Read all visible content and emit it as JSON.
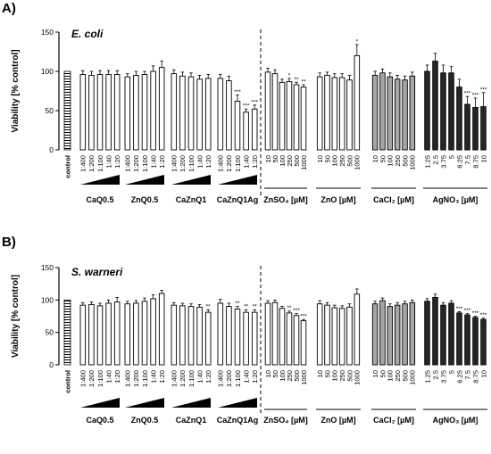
{
  "chart_data": [
    {
      "type": "bar",
      "panel": "A)",
      "organism": "E. coli",
      "ylabel": "Viability [% control]",
      "ylim": [
        0,
        150
      ],
      "yticks": [
        0,
        50,
        100,
        150
      ],
      "grid": false,
      "groups": [
        {
          "label": "CaQ0.5",
          "fill": "#ffffff",
          "ramp": true,
          "categories": [
            "1:400",
            "1:200",
            "1:100",
            "1:40",
            "1:20"
          ],
          "values": [
            96,
            95,
            96,
            96,
            96
          ],
          "errors": [
            5,
            5,
            5,
            5,
            5
          ],
          "sig": [
            "",
            "",
            "",
            "",
            ""
          ]
        },
        {
          "label": "ZnQ0.5",
          "fill": "#ffffff",
          "ramp": true,
          "categories": [
            "1:400",
            "1:200",
            "1:100",
            "1:40",
            "1:20"
          ],
          "values": [
            93,
            95,
            96,
            100,
            105
          ],
          "errors": [
            4,
            5,
            4,
            7,
            8
          ],
          "sig": [
            "",
            "",
            "",
            "",
            ""
          ]
        },
        {
          "label": "CaZnQ1",
          "fill": "#ffffff",
          "ramp": true,
          "categories": [
            "1:400",
            "1:200",
            "1:100",
            "1:40",
            "1:20"
          ],
          "values": [
            97,
            94,
            93,
            90,
            91
          ],
          "errors": [
            5,
            5,
            5,
            5,
            5
          ],
          "sig": [
            "",
            "",
            "",
            "",
            ""
          ]
        },
        {
          "label": "CaZnQ1Ag",
          "fill": "#ffffff",
          "ramp": true,
          "categories": [
            "1:400",
            "1:200",
            "1:100",
            "1:40",
            "1:20"
          ],
          "values": [
            91,
            88,
            62,
            48,
            52
          ],
          "errors": [
            5,
            6,
            8,
            4,
            5
          ],
          "sig": [
            "",
            "",
            "***",
            "***",
            "***"
          ]
        },
        {
          "label": "ZnSO₄ [µM]",
          "fill": "#ffffff",
          "ramp": false,
          "categories": [
            "10",
            "50",
            "100",
            "250",
            "500",
            "1000"
          ],
          "values": [
            99,
            97,
            86,
            87,
            83,
            80
          ],
          "errors": [
            5,
            5,
            4,
            4,
            3,
            3
          ],
          "sig": [
            "",
            "",
            "",
            "*",
            "**",
            "**"
          ]
        },
        {
          "label": "ZnO [µM]",
          "fill": "#ffffff",
          "ramp": false,
          "categories": [
            "10",
            "50",
            "100",
            "250",
            "500",
            "1000"
          ],
          "values": [
            93,
            95,
            92,
            92,
            89,
            120
          ],
          "errors": [
            5,
            4,
            5,
            5,
            6,
            14
          ],
          "sig": [
            "",
            "",
            "",
            "",
            "",
            "*"
          ]
        },
        {
          "label": "CaCl₂ [µM]",
          "fill": "#a6a6a6",
          "ramp": false,
          "categories": [
            "10",
            "50",
            "100",
            "250",
            "500",
            "1000"
          ],
          "values": [
            95,
            98,
            93,
            90,
            89,
            94
          ],
          "errors": [
            5,
            5,
            5,
            5,
            5,
            5
          ],
          "sig": [
            "",
            "",
            "",
            "",
            "",
            ""
          ]
        },
        {
          "label": "AgNO₃ [µM]",
          "fill": "#262626",
          "ramp": false,
          "categories": [
            "1.25",
            "2.5",
            "3.75",
            "5",
            "6.25",
            "7.5",
            "8.75",
            "10"
          ],
          "values": [
            100,
            113,
            98,
            98,
            80,
            58,
            54,
            55
          ],
          "errors": [
            8,
            10,
            10,
            8,
            10,
            10,
            12,
            18
          ],
          "sig": [
            "",
            "",
            "",
            "",
            "",
            "***",
            "***",
            "***"
          ]
        }
      ],
      "control": {
        "label": "control",
        "value": 100
      }
    },
    {
      "type": "bar",
      "panel": "B)",
      "organism": "S. warneri",
      "ylabel": "Viability [% control]",
      "ylim": [
        0,
        150
      ],
      "yticks": [
        0,
        50,
        100,
        150
      ],
      "grid": false,
      "groups": [
        {
          "label": "CaQ0.5",
          "fill": "#ffffff",
          "ramp": true,
          "categories": [
            "1:400",
            "1:200",
            "1:100",
            "1:40",
            "1:20"
          ],
          "values": [
            92,
            93,
            91,
            95,
            97
          ],
          "errors": [
            4,
            4,
            4,
            5,
            7
          ],
          "sig": [
            "",
            "",
            "",
            "",
            ""
          ]
        },
        {
          "label": "ZnQ0.5",
          "fill": "#ffffff",
          "ramp": true,
          "categories": [
            "1:400",
            "1:200",
            "1:100",
            "1:40",
            "1:20"
          ],
          "values": [
            94,
            95,
            98,
            102,
            110
          ],
          "errors": [
            4,
            4,
            5,
            6,
            5
          ],
          "sig": [
            "",
            "",
            "",
            "",
            ""
          ]
        },
        {
          "label": "CaZnQ1",
          "fill": "#ffffff",
          "ramp": true,
          "categories": [
            "1:400",
            "1:200",
            "1:100",
            "1:40",
            "1:20"
          ],
          "values": [
            92,
            91,
            90,
            89,
            81
          ],
          "errors": [
            4,
            4,
            4,
            4,
            4
          ],
          "sig": [
            "",
            "",
            "",
            "",
            "**"
          ]
        },
        {
          "label": "CaZnQ1Ag",
          "fill": "#ffffff",
          "ramp": true,
          "categories": [
            "1:400",
            "1:200",
            "1:100",
            "1:40",
            "1:20"
          ],
          "values": [
            95,
            90,
            86,
            81,
            81
          ],
          "errors": [
            6,
            5,
            4,
            4,
            4
          ],
          "sig": [
            "",
            "",
            "**",
            "**",
            "**"
          ]
        },
        {
          "label": "ZnSO₄ [µM]",
          "fill": "#ffffff",
          "ramp": false,
          "categories": [
            "10",
            "50",
            "100",
            "250",
            "500",
            "1000"
          ],
          "values": [
            95,
            96,
            87,
            80,
            76,
            68
          ],
          "errors": [
            4,
            4,
            3,
            3,
            3,
            2
          ],
          "sig": [
            "",
            "",
            "",
            "**",
            "***",
            "***"
          ]
        },
        {
          "label": "ZnO [µM]",
          "fill": "#ffffff",
          "ramp": false,
          "categories": [
            "10",
            "50",
            "100",
            "250",
            "500",
            "1000"
          ],
          "values": [
            94,
            92,
            88,
            87,
            89,
            109
          ],
          "errors": [
            5,
            4,
            4,
            4,
            5,
            8
          ],
          "sig": [
            "",
            "",
            "",
            "",
            "",
            ""
          ]
        },
        {
          "label": "CaCl₂ [µM]",
          "fill": "#a6a6a6",
          "ramp": false,
          "categories": [
            "10",
            "50",
            "100",
            "250",
            "500",
            "1000"
          ],
          "values": [
            94,
            99,
            90,
            92,
            94,
            96
          ],
          "errors": [
            4,
            4,
            4,
            4,
            4,
            4
          ],
          "sig": [
            "",
            "",
            "",
            "",
            "",
            ""
          ]
        },
        {
          "label": "AgNO₃ [µM]",
          "fill": "#262626",
          "ramp": false,
          "categories": [
            "1.25",
            "2.5",
            "3.75",
            "5",
            "6.25",
            "7.5",
            "8.75",
            "10"
          ],
          "values": [
            98,
            104,
            92,
            95,
            80,
            77,
            73,
            70
          ],
          "errors": [
            4,
            5,
            4,
            4,
            2,
            2,
            2,
            2
          ],
          "sig": [
            "",
            "",
            "",
            "",
            "***",
            "***",
            "***",
            "***"
          ]
        }
      ],
      "control": {
        "label": "control",
        "value": 100
      }
    }
  ]
}
